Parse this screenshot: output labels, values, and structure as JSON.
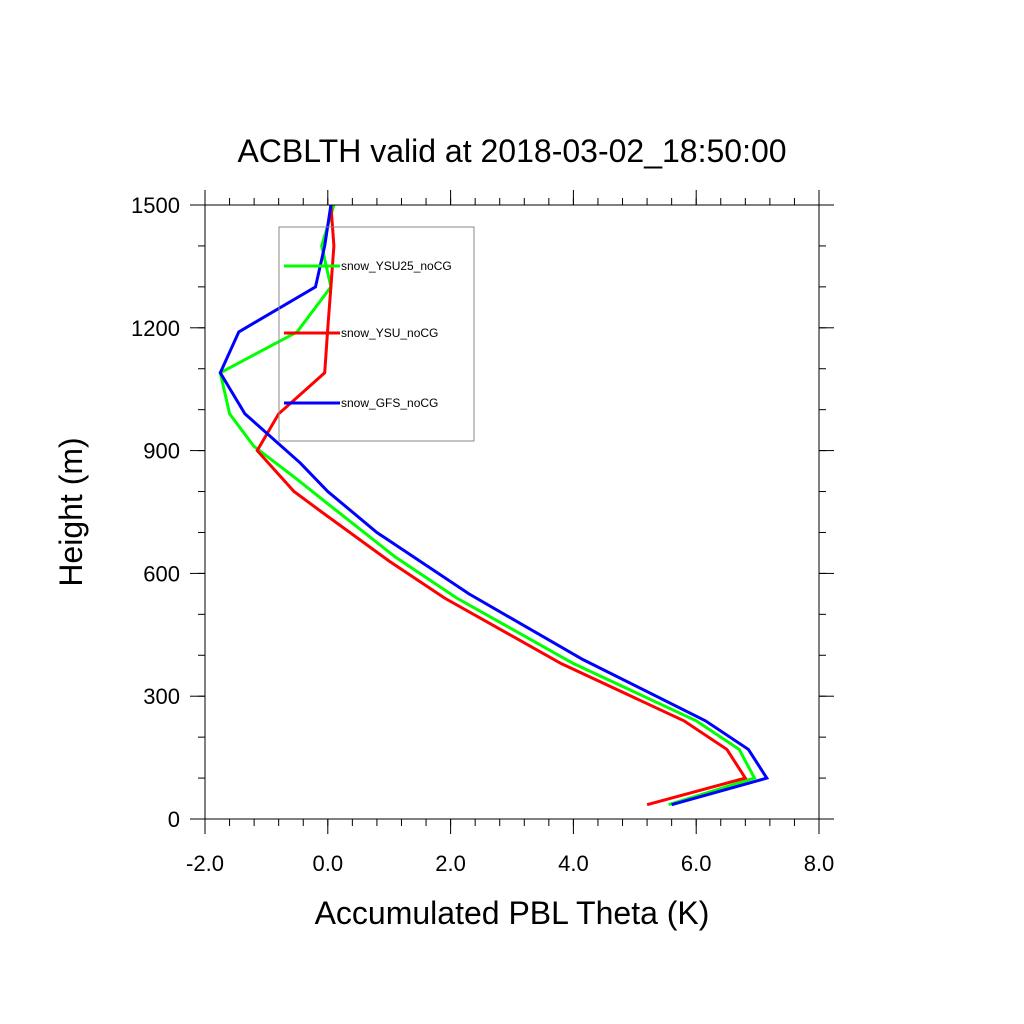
{
  "chart_data": {
    "type": "line",
    "title": "ACBLTH valid at 2018-03-02_18:50:00",
    "xlabel": "Accumulated PBL Theta (K)",
    "ylabel": "Height (m)",
    "xlim": [
      -2.0,
      8.0
    ],
    "ylim": [
      0,
      1500
    ],
    "xticks": [
      -2.0,
      0.0,
      2.0,
      4.0,
      6.0,
      8.0
    ],
    "xtick_labels": [
      "-2.0",
      "0.0",
      "2.0",
      "4.0",
      "6.0",
      "8.0"
    ],
    "yticks": [
      0,
      300,
      600,
      900,
      1200,
      1500
    ],
    "ytick_labels": [
      "0",
      "300",
      "600",
      "900",
      "1200",
      "1500"
    ],
    "legend_position": "top-left",
    "grid": false,
    "series": [
      {
        "name": "snow_YSU25_noCG",
        "color": "#00ff00",
        "x": [
          5.55,
          6.95,
          6.7,
          6.0,
          4.0,
          2.1,
          1.1,
          0.0,
          -0.5,
          -1.2,
          -1.6,
          -1.75,
          -0.5,
          0.05,
          -0.1,
          0.1
        ],
        "y": [
          35,
          100,
          170,
          240,
          380,
          540,
          640,
          770,
          830,
          910,
          990,
          1090,
          1190,
          1300,
          1400,
          1500
        ]
      },
      {
        "name": "snow_YSU_noCG",
        "color": "#ff0000",
        "x": [
          5.2,
          6.8,
          6.5,
          5.8,
          3.8,
          1.9,
          1.0,
          -0.1,
          -0.55,
          -1.15,
          -0.8,
          -0.05,
          0.0,
          0.05,
          0.1,
          0.05
        ],
        "y": [
          35,
          100,
          170,
          240,
          380,
          540,
          630,
          750,
          800,
          900,
          990,
          1090,
          1200,
          1300,
          1400,
          1500
        ]
      },
      {
        "name": "snow_GFS_noCG",
        "color": "#0000ff",
        "x": [
          5.6,
          7.15,
          6.85,
          6.15,
          4.15,
          2.3,
          0.8,
          0.0,
          -0.45,
          -1.35,
          -1.75,
          -1.45,
          -0.2,
          -0.05,
          0.05
        ],
        "y": [
          35,
          100,
          170,
          240,
          390,
          550,
          700,
          800,
          870,
          990,
          1090,
          1190,
          1300,
          1400,
          1500
        ]
      }
    ]
  }
}
